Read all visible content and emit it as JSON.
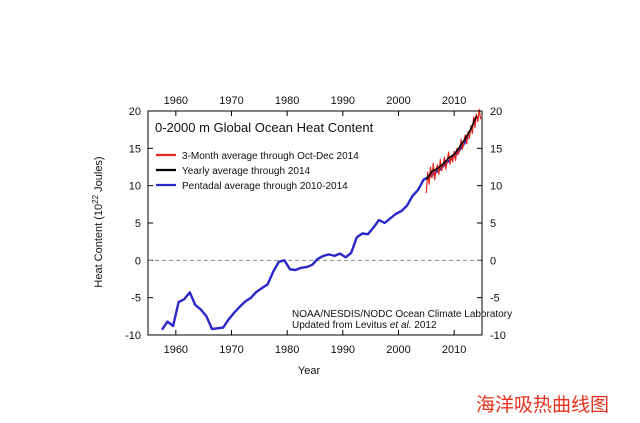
{
  "chart_data": {
    "type": "line",
    "title": "0-2000 m Global Ocean Heat Content",
    "xlabel": "Year",
    "ylabel": "Heat Content (10",
    "ylabel_sup": "22",
    "ylabel_tail": " Joules)",
    "xlim": [
      1955,
      2015
    ],
    "ylim": [
      -10,
      20
    ],
    "xticks": [
      1960,
      1970,
      1980,
      1990,
      2000,
      2010
    ],
    "yticks": [
      -10,
      -5,
      0,
      5,
      10,
      15,
      20
    ],
    "grid": false,
    "zero_line": "dashed",
    "legend_placement": "top-left",
    "series": [
      {
        "name": "3-Month average through Oct-Dec 2014",
        "color": "#e8251b",
        "x": [
          2005.0,
          2005.25,
          2005.5,
          2005.75,
          2006.0,
          2006.25,
          2006.5,
          2006.75,
          2007.0,
          2007.25,
          2007.5,
          2007.75,
          2008.0,
          2008.25,
          2008.5,
          2008.75,
          2009.0,
          2009.25,
          2009.5,
          2009.75,
          2010.0,
          2010.25,
          2010.5,
          2010.75,
          2011.0,
          2011.25,
          2011.5,
          2011.75,
          2012.0,
          2012.25,
          2012.5,
          2012.75,
          2013.0,
          2013.25,
          2013.5,
          2013.75,
          2014.0,
          2014.25,
          2014.5,
          2014.75
        ],
        "y": [
          9.0,
          11.8,
          10.2,
          12.5,
          11.0,
          13.0,
          10.8,
          12.2,
          12.8,
          11.5,
          13.5,
          12.0,
          12.6,
          13.8,
          12.2,
          13.4,
          14.5,
          12.9,
          14.0,
          13.2,
          14.6,
          13.4,
          15.0,
          14.2,
          14.8,
          16.2,
          14.9,
          16.0,
          16.8,
          15.6,
          17.2,
          16.4,
          18.0,
          17.0,
          19.2,
          17.8,
          19.6,
          18.6,
          20.2,
          18.9
        ]
      },
      {
        "name": "Yearly average through 2014",
        "color": "#000000",
        "x": [
          2005,
          2006,
          2007,
          2008,
          2009,
          2010,
          2011,
          2012,
          2013,
          2014
        ],
        "y": [
          10.8,
          11.9,
          12.3,
          12.9,
          13.7,
          14.2,
          15.2,
          16.3,
          17.6,
          19.3
        ]
      },
      {
        "name": "Pentadal average through 2010-2014",
        "color": "#2a28c8",
        "x": [
          1957.5,
          1958.5,
          1959.5,
          1960.5,
          1961.5,
          1962.5,
          1963.5,
          1964.5,
          1965.5,
          1966.5,
          1967.5,
          1968.5,
          1969.5,
          1970.5,
          1971.5,
          1972.5,
          1973.5,
          1974.5,
          1975.5,
          1976.5,
          1977.5,
          1978.5,
          1979.5,
          1980.5,
          1981.5,
          1982.5,
          1983.5,
          1984.5,
          1985.5,
          1986.5,
          1987.5,
          1988.5,
          1989.5,
          1990.5,
          1991.5,
          1992.5,
          1993.5,
          1994.5,
          1995.5,
          1996.5,
          1997.5,
          1998.5,
          1999.5,
          2000.5,
          2001.5,
          2002.5,
          2003.5,
          2004.5,
          2005.5,
          2006.5,
          2007.5,
          2008.5,
          2009.5,
          2010.5,
          2011.5,
          2012.5
        ],
        "y": [
          -9.3,
          -8.2,
          -8.8,
          -5.6,
          -5.2,
          -4.3,
          -6.0,
          -6.6,
          -7.5,
          -9.2,
          -9.1,
          -9.0,
          -7.9,
          -7.0,
          -6.2,
          -5.5,
          -5.0,
          -4.2,
          -3.7,
          -3.2,
          -1.5,
          -0.2,
          0.0,
          -1.2,
          -1.3,
          -1.0,
          -0.9,
          -0.6,
          0.2,
          0.6,
          0.8,
          0.6,
          0.9,
          0.4,
          1.0,
          3.1,
          3.6,
          3.5,
          4.4,
          5.4,
          5.0,
          5.6,
          6.2,
          6.6,
          7.3,
          8.6,
          9.4,
          10.8,
          11.2,
          11.7,
          12.2,
          13.0,
          13.6,
          14.3,
          15.3,
          16.5
        ]
      }
    ],
    "annotation_line1": "NOAA/NESDIS/NODC Ocean Climate Laboratory",
    "annotation_line2_pre": "Updated from Levitus ",
    "annotation_line2_em": "et al.",
    "annotation_line2_post": " 2012"
  },
  "watermark": "海洋吸热曲线图"
}
